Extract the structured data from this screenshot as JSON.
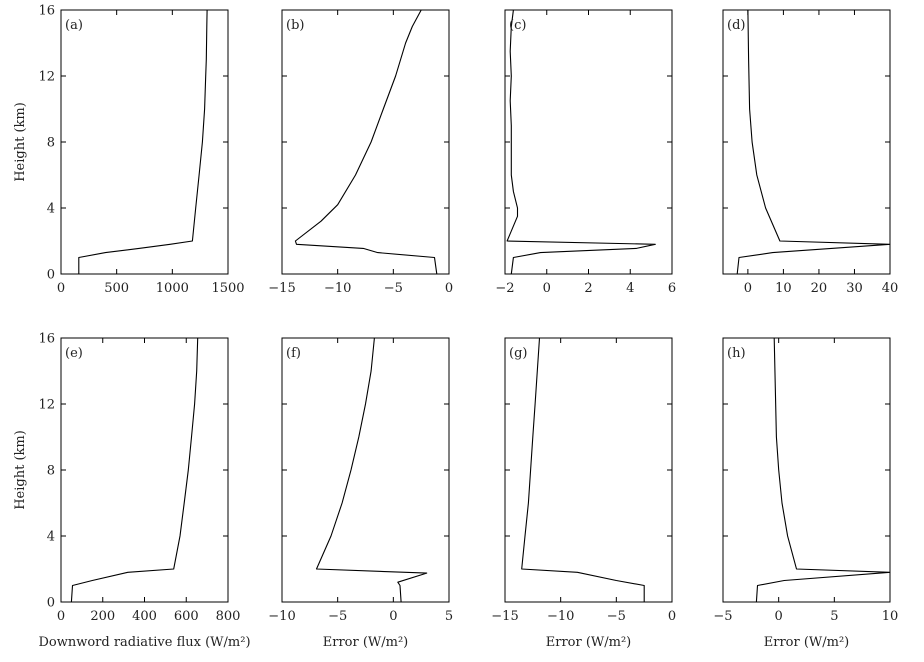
{
  "figure": {
    "height_label": "Height (km)"
  },
  "chart_data": [
    {
      "type": "line",
      "panel_label": "(a)",
      "xlabel": "",
      "ylabel": "Height (km)",
      "xlim": [
        0,
        1500
      ],
      "ylim": [
        0,
        16
      ],
      "xticks": [
        0,
        500,
        1000,
        1500
      ],
      "yticks": [
        0,
        4,
        8,
        12,
        16
      ],
      "xticklabels": [
        "0",
        "500",
        "1000",
        "1500"
      ],
      "yticklabels": [
        "0",
        "4",
        "8",
        "12",
        "16"
      ],
      "series": [
        {
          "x": [
            160,
            160,
            400,
            700,
            980,
            1180,
            1210,
            1240,
            1270,
            1290,
            1300,
            1305,
            1310,
            1312
          ],
          "y": [
            0,
            1.0,
            1.3,
            1.55,
            1.8,
            2.0,
            4,
            6,
            8,
            10,
            12,
            13,
            15,
            16
          ]
        }
      ]
    },
    {
      "type": "line",
      "panel_label": "(b)",
      "xlabel": "",
      "ylabel": "",
      "xlim": [
        -15,
        0
      ],
      "ylim": [
        0,
        16
      ],
      "xticks": [
        -15,
        -10,
        -5,
        0
      ],
      "yticks": [
        0,
        4,
        8,
        12,
        16
      ],
      "xticklabels": [
        "−15",
        "−10",
        "−5",
        "0"
      ],
      "yticklabels": [],
      "series": [
        {
          "x": [
            -1.1,
            -1.3,
            -6.4,
            -7.7,
            -13.7,
            -13.8,
            -11.5,
            -10.0,
            -8.4,
            -7.0,
            -5.9,
            -4.8,
            -3.9,
            -3.3,
            -2.5
          ],
          "y": [
            0,
            1.0,
            1.3,
            1.55,
            1.8,
            2.0,
            3.2,
            4.2,
            6.0,
            8.0,
            10.0,
            12.0,
            14.0,
            15.0,
            16.0
          ]
        }
      ]
    },
    {
      "type": "line",
      "panel_label": "(c)",
      "xlabel": "",
      "ylabel": "",
      "xlim": [
        -2,
        6
      ],
      "ylim": [
        0,
        16
      ],
      "xticks": [
        -2,
        0,
        2,
        4,
        6
      ],
      "yticks": [
        0,
        4,
        8,
        12,
        16
      ],
      "xticklabels": [
        "−2",
        "0",
        "2",
        "4",
        "6"
      ],
      "yticklabels": [],
      "series": [
        {
          "x": [
            -1.7,
            -1.6,
            -0.3,
            4.3,
            5.2,
            -1.9,
            -1.4,
            -1.4,
            -1.6,
            -1.7,
            -1.7,
            -1.7,
            -1.75,
            -1.7,
            -1.75,
            -1.7,
            -1.6
          ],
          "y": [
            0,
            1.0,
            1.3,
            1.55,
            1.8,
            2.0,
            3.5,
            4.0,
            5.0,
            6.0,
            7.5,
            9.0,
            10.5,
            12.0,
            13.5,
            15.0,
            16.0
          ]
        }
      ]
    },
    {
      "type": "line",
      "panel_label": "(d)",
      "xlabel": "",
      "ylabel": "",
      "xlim": [
        -7,
        40
      ],
      "ylim": [
        0,
        16
      ],
      "xticks": [
        0,
        10,
        20,
        30,
        40
      ],
      "yticks": [
        0,
        4,
        8,
        12,
        16
      ],
      "xticklabels": [
        "0",
        "10",
        "20",
        "30",
        "40"
      ],
      "yticklabels": [],
      "series": [
        {
          "x": [
            -3.0,
            -2.5,
            7.0,
            40.0,
            9.0,
            5.0,
            2.5,
            1.2,
            0.5,
            0.2,
            0.0
          ],
          "y": [
            0,
            1.0,
            1.3,
            1.8,
            2.0,
            4.0,
            6.0,
            8.0,
            10.0,
            13.0,
            16.0
          ]
        }
      ]
    },
    {
      "type": "line",
      "panel_label": "(e)",
      "xlabel": "Downword radiative flux (W/m²)",
      "ylabel": "Height (km)",
      "xlim": [
        0,
        800
      ],
      "ylim": [
        0,
        16
      ],
      "xticks": [
        0,
        200,
        400,
        600,
        800
      ],
      "yticks": [
        0,
        4,
        8,
        12,
        16
      ],
      "xticklabels": [
        "0",
        "200",
        "400",
        "600",
        "800"
      ],
      "yticklabels": [
        "0",
        "4",
        "8",
        "12",
        "16"
      ],
      "series": [
        {
          "x": [
            50,
            55,
            150,
            320,
            540,
            570,
            590,
            610,
            625,
            640,
            650,
            655
          ],
          "y": [
            0,
            1.0,
            1.3,
            1.8,
            2.0,
            4.0,
            6.0,
            8.0,
            10.0,
            12.0,
            14.0,
            16.0
          ]
        }
      ]
    },
    {
      "type": "line",
      "panel_label": "(f)",
      "xlabel": "Error (W/m²)",
      "ylabel": "",
      "xlim": [
        -10,
        5
      ],
      "ylim": [
        0,
        16
      ],
      "xticks": [
        -10,
        -5,
        0,
        5
      ],
      "yticks": [
        0,
        4,
        8,
        12,
        16
      ],
      "xticklabels": [
        "−10",
        "−5",
        "0",
        "5"
      ],
      "yticklabels": [],
      "series": [
        {
          "x": [
            0.7,
            0.6,
            0.4,
            3.0,
            -6.9,
            -5.6,
            -4.6,
            -3.8,
            -3.1,
            -2.5,
            -2.0,
            -1.7
          ],
          "y": [
            0,
            1.0,
            1.2,
            1.75,
            2.0,
            4.0,
            6.0,
            8.0,
            10.0,
            12.0,
            14.0,
            16.0
          ]
        }
      ]
    },
    {
      "type": "line",
      "panel_label": "(g)",
      "xlabel": "Error (W/m²)",
      "ylabel": "",
      "xlim": [
        -15,
        0
      ],
      "ylim": [
        0,
        16
      ],
      "xticks": [
        -15,
        -10,
        -5,
        0
      ],
      "yticks": [
        0,
        4,
        8,
        12,
        16
      ],
      "xticklabels": [
        "−15",
        "−10",
        "−5",
        "0"
      ],
      "yticklabels": [],
      "series": [
        {
          "x": [
            -2.5,
            -2.5,
            -5.0,
            -8.5,
            -13.5,
            -13.2,
            -12.9,
            -12.7,
            -12.5,
            -12.3,
            -12.1,
            -11.9
          ],
          "y": [
            0,
            1.0,
            1.3,
            1.8,
            2.0,
            4.0,
            6.0,
            8.0,
            10.0,
            12.0,
            14.0,
            16.0
          ]
        }
      ]
    },
    {
      "type": "line",
      "panel_label": "(h)",
      "xlabel": "Error (W/m²)",
      "ylabel": "",
      "xlim": [
        -5,
        10
      ],
      "ylim": [
        0,
        16
      ],
      "xticks": [
        -5,
        0,
        5,
        10
      ],
      "yticks": [
        0,
        4,
        8,
        12,
        16
      ],
      "xticklabels": [
        "−5",
        "0",
        "5",
        "10"
      ],
      "yticklabels": [],
      "series": [
        {
          "x": [
            -2.0,
            -1.9,
            0.5,
            10.0,
            1.6,
            0.8,
            0.3,
            0.0,
            -0.2,
            -0.3,
            -0.4
          ],
          "y": [
            0,
            1.0,
            1.3,
            1.8,
            2.0,
            4.0,
            6.0,
            8.0,
            10.0,
            13.0,
            16.0
          ]
        }
      ]
    }
  ]
}
